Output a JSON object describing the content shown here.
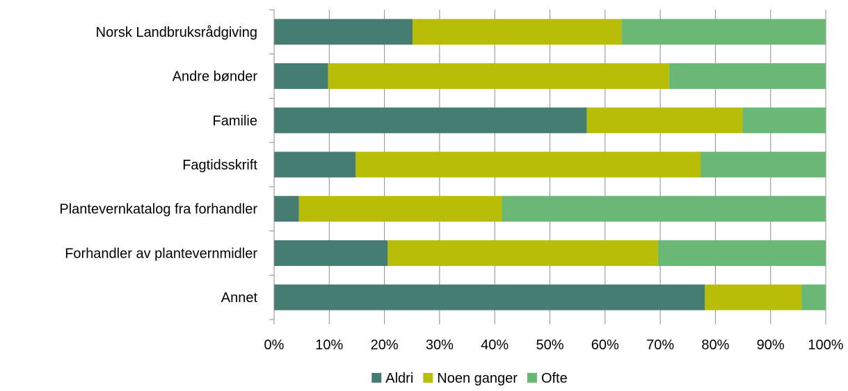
{
  "chart_data": {
    "type": "bar",
    "orientation": "horizontal",
    "stacked": "percent",
    "title": "",
    "xlabel": "",
    "ylabel": "",
    "xlim": [
      0,
      100
    ],
    "x_ticks": [
      "0%",
      "10%",
      "20%",
      "30%",
      "40%",
      "50%",
      "60%",
      "70%",
      "80%",
      "90%",
      "100%"
    ],
    "grid": "vertical major gridlines",
    "legend_position": "bottom",
    "categories": [
      "Norsk Landbruksrådgiving",
      "Andre bønder",
      "Familie",
      "Fagtidsskrift",
      "Plantevernkatalog fra forhandler",
      "Forhandler av plantevernmidler",
      "Annet"
    ],
    "series": [
      {
        "name": "Aldri",
        "color": "#467d72",
        "values": [
          25.1,
          9.8,
          56.7,
          14.8,
          4.5,
          20.6,
          78.1
        ]
      },
      {
        "name": "Noen ganger",
        "color": "#b8be08",
        "values": [
          37.9,
          61.8,
          28.2,
          62.5,
          36.8,
          49.0,
          17.5
        ]
      },
      {
        "name": "Ofte",
        "color": "#6ab776",
        "values": [
          37.0,
          28.4,
          15.1,
          22.7,
          58.7,
          30.4,
          4.4
        ]
      }
    ]
  }
}
